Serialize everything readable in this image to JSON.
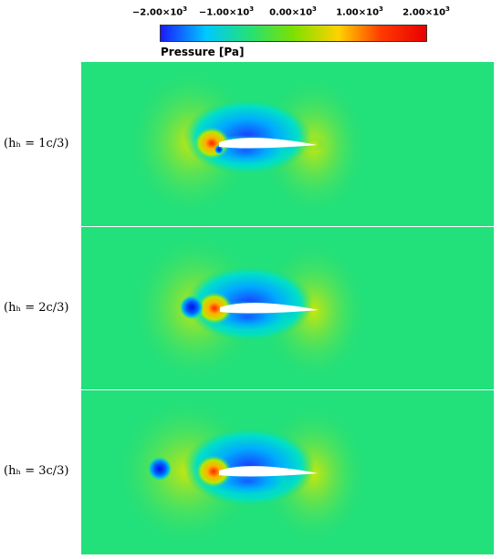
{
  "colorbar": {
    "title": "Pressure [Pa]",
    "ticks": [
      {
        "mantissa": "−2.00",
        "exp": "3"
      },
      {
        "mantissa": "−1.00",
        "exp": "3"
      },
      {
        "mantissa": "0.00",
        "exp": "3"
      },
      {
        "mantissa": "1.00",
        "exp": "3"
      },
      {
        "mantissa": "2.00",
        "exp": "3"
      }
    ],
    "colors": [
      "#1a1aff",
      "#00c8ff",
      "#22e07a",
      "#7de000",
      "#ffd200",
      "#ff3a00",
      "#e80000"
    ]
  },
  "panels": [
    {
      "label": "(hₕ = 1c/3)",
      "vortex_offset_fraction": 0.0
    },
    {
      "label": "(hₕ = 2c/3)",
      "vortex_offset_fraction": 0.33
    },
    {
      "label": "(hₕ = 3c/3)",
      "vortex_offset_fraction": 0.67
    }
  ]
}
